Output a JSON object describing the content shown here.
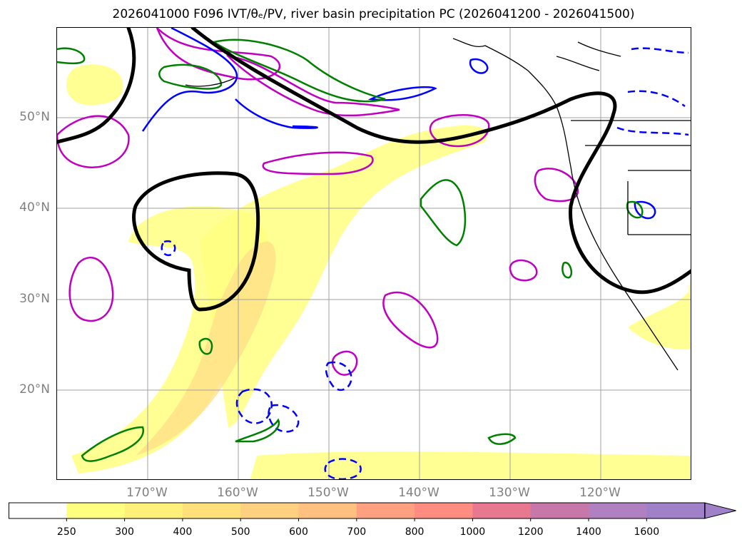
{
  "title": "2026041000 F096 IVT/θₑ/PV, river basin precipitation PC (2026041200 - 2026041500)",
  "map": {
    "latitude_labels": [
      "50°N",
      "40°N",
      "30°N",
      "20°N"
    ],
    "longitude_labels": [
      "170°W",
      "160°W",
      "150°W",
      "140°W",
      "130°W",
      "120°W"
    ],
    "latitude_values": [
      50,
      40,
      30,
      20
    ],
    "longitude_values": [
      -170,
      -160,
      -150,
      -140,
      -130,
      -120
    ],
    "lon_range": [
      -180,
      -110
    ],
    "lat_range": [
      10,
      60
    ],
    "gridline_color": "#a0a0a0",
    "contour_colors": {
      "ivt_fill_light": "#ffff80",
      "ivt_fill_mid": "#ffe08a",
      "thick_line": "#000000",
      "pv_blue": "#0000ff",
      "magenta": "#c000c0",
      "green": "#008000",
      "coastline": "#000000"
    }
  },
  "colorbar": {
    "ticks": [
      "250",
      "300",
      "400",
      "500",
      "600",
      "700",
      "800",
      "1000",
      "1200",
      "1400",
      "1600"
    ],
    "colors": [
      "#ffffff",
      "#ffff80",
      "#fff07a",
      "#ffe07a",
      "#ffd080",
      "#ffc080",
      "#ffa080",
      "#ff8c80",
      "#e87890",
      "#c878a8",
      "#b080c0",
      "#a080c8"
    ],
    "extend": "max"
  }
}
